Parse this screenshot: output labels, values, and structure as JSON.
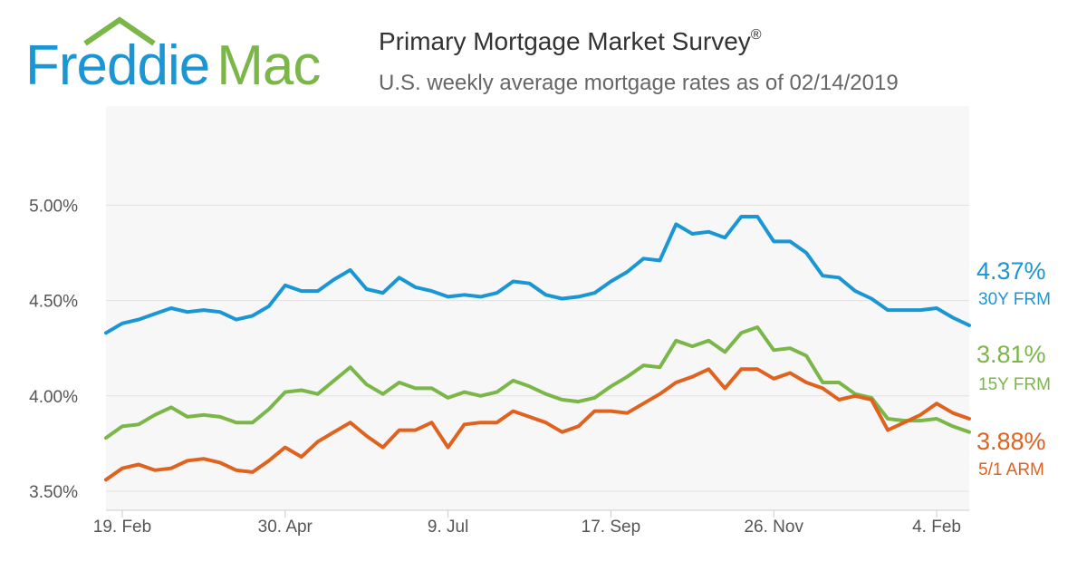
{
  "header": {
    "logo_text_1": "Freddie",
    "logo_text_2": "Mac",
    "title": "Primary Mortgage Market Survey",
    "title_mark": "®",
    "subtitle": "U.S. weekly average mortgage rates as of 02/14/2019"
  },
  "colors": {
    "brand_blue": "#1a96d4",
    "brand_green": "#7ab648",
    "series_30y": "#1a96d4",
    "series_15y": "#7ab648",
    "series_arm": "#e0621f",
    "plot_bg": "#f7f7f7",
    "grid": "#e2e2e2"
  },
  "chart_data": {
    "type": "line",
    "title": "Primary Mortgage Market Survey",
    "subtitle": "U.S. weekly average mortgage rates as of 02/14/2019",
    "xlabel": "",
    "ylabel": "",
    "ylim": [
      3.4,
      5.52
    ],
    "y_ticks": [
      3.5,
      4.0,
      4.5,
      5.0
    ],
    "y_tick_labels": [
      "3.50%",
      "4.00%",
      "4.50%",
      "5.00%"
    ],
    "x_tick_labels": [
      "19. Feb",
      "30. Apr",
      "9. Jul",
      "17. Sep",
      "26. Nov",
      "4. Feb"
    ],
    "x_tick_index": [
      1,
      11,
      21,
      31,
      41,
      51
    ],
    "grid": true,
    "legend": "right",
    "series": [
      {
        "name": "30Y FRM",
        "end_label": "4.37%",
        "values": [
          4.33,
          4.38,
          4.4,
          4.43,
          4.46,
          4.44,
          4.45,
          4.44,
          4.4,
          4.42,
          4.47,
          4.58,
          4.55,
          4.55,
          4.61,
          4.66,
          4.56,
          4.54,
          4.62,
          4.57,
          4.55,
          4.52,
          4.53,
          4.52,
          4.54,
          4.6,
          4.59,
          4.53,
          4.51,
          4.52,
          4.54,
          4.6,
          4.65,
          4.72,
          4.71,
          4.9,
          4.85,
          4.86,
          4.83,
          4.94,
          4.94,
          4.81,
          4.81,
          4.75,
          4.63,
          4.62,
          4.55,
          4.51,
          4.45,
          4.45,
          4.45,
          4.46,
          4.41,
          4.37
        ]
      },
      {
        "name": "15Y FRM",
        "end_label": "3.81%",
        "values": [
          3.78,
          3.84,
          3.85,
          3.9,
          3.94,
          3.89,
          3.9,
          3.89,
          3.86,
          3.86,
          3.93,
          4.02,
          4.03,
          4.01,
          4.08,
          4.15,
          4.06,
          4.01,
          4.07,
          4.04,
          4.04,
          3.99,
          4.02,
          4.0,
          4.02,
          4.08,
          4.05,
          4.01,
          3.98,
          3.97,
          3.99,
          4.05,
          4.1,
          4.16,
          4.15,
          4.29,
          4.26,
          4.29,
          4.23,
          4.33,
          4.36,
          4.24,
          4.25,
          4.21,
          4.07,
          4.07,
          4.01,
          3.99,
          3.88,
          3.87,
          3.87,
          3.88,
          3.84,
          3.81
        ]
      },
      {
        "name": "5/1 ARM",
        "end_label": "3.88%",
        "values": [
          3.56,
          3.62,
          3.64,
          3.61,
          3.62,
          3.66,
          3.67,
          3.65,
          3.61,
          3.6,
          3.66,
          3.73,
          3.68,
          3.76,
          3.81,
          3.86,
          3.79,
          3.73,
          3.82,
          3.82,
          3.86,
          3.73,
          3.85,
          3.86,
          3.86,
          3.92,
          3.89,
          3.86,
          3.81,
          3.84,
          3.92,
          3.92,
          3.91,
          3.96,
          4.01,
          4.07,
          4.1,
          4.14,
          4.04,
          4.14,
          4.14,
          4.09,
          4.12,
          4.07,
          4.04,
          3.98,
          4.0,
          3.98,
          3.82,
          3.86,
          3.9,
          3.96,
          3.91,
          3.88
        ]
      }
    ]
  }
}
